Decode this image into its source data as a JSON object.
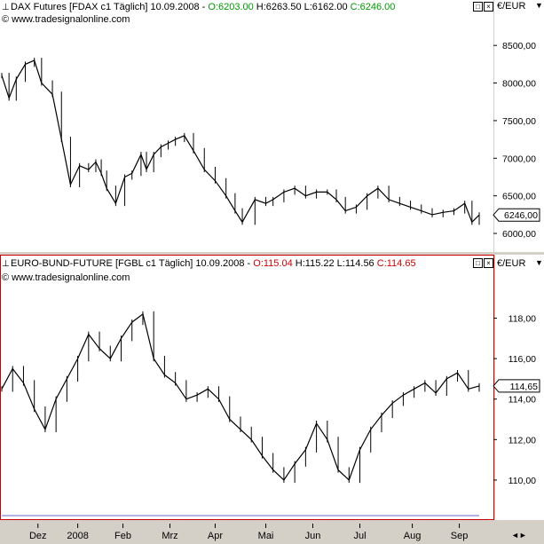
{
  "panels": [
    {
      "title": "DAX Futures [FDAX c1  Täglich] 10.09.2008",
      "sep": " - ",
      "open": "O:6203.00",
      "high": "H:6263.50",
      "low": "L:6162.00",
      "close": "C:6246.00",
      "open_color": "#009900",
      "close_color": "#009900",
      "url": "© www.tradesignalonline.com",
      "unit": "€/EUR",
      "price_label": "6246,00"
    },
    {
      "title": "EURO-BUND-FUTURE [FGBL c1  Täglich] 10.09.2008",
      "sep": " - ",
      "open": "O:115.04",
      "high": "H:115.22",
      "low": "L:114.56",
      "close": "C:114.65",
      "open_color": "#cc0000",
      "close_color": "#cc0000",
      "url": "© www.tradesignalonline.com",
      "unit": "€/EUR",
      "price_label": "114,65"
    }
  ],
  "window_buttons": {
    "restore": "□",
    "close": "×"
  },
  "chart_data": [
    {
      "type": "line",
      "title": "DAX Futures [FDAX c1  Täglich] 10.09.2008",
      "ylim": [
        5800,
        8750
      ],
      "yticks": [
        6000,
        6500,
        7000,
        7500,
        8000,
        8500
      ],
      "ytick_labels": [
        "6000,00",
        "6500,00",
        "7000,00",
        "7500,00",
        "8000,00",
        "8500,00"
      ],
      "last_value": 6246,
      "x": [
        0,
        4,
        8,
        13,
        18,
        22,
        28,
        33,
        38,
        43,
        48,
        52,
        55,
        58,
        63,
        68,
        72,
        77,
        80,
        84,
        88,
        92,
        96,
        101,
        106,
        112,
        118,
        124,
        129,
        133,
        140,
        146,
        150,
        156,
        162,
        168,
        174,
        180,
        185,
        190,
        196,
        202,
        208,
        214,
        220,
        226,
        232,
        238,
        244,
        250,
        256,
        260,
        264
      ],
      "values": [
        8100,
        7800,
        8050,
        8250,
        8300,
        8000,
        7850,
        7250,
        6650,
        6900,
        6850,
        6950,
        6800,
        6600,
        6400,
        6750,
        6800,
        7050,
        6850,
        7050,
        7150,
        7200,
        7250,
        7300,
        7100,
        6850,
        6700,
        6500,
        6300,
        6150,
        6450,
        6400,
        6450,
        6550,
        6600,
        6500,
        6550,
        6550,
        6450,
        6300,
        6350,
        6500,
        6600,
        6450,
        6400,
        6350,
        6300,
        6250,
        6280,
        6300,
        6400,
        6150,
        6246
      ]
    },
    {
      "type": "line",
      "title": "EURO-BUND-FUTURE [FGBL c1  Täglich] 10.09.2008",
      "ylim": [
        108.2,
        119.6
      ],
      "yticks": [
        110,
        112,
        114,
        116,
        118
      ],
      "ytick_labels": [
        "110,00",
        "112,00",
        "114,00",
        "116,00",
        "118,00"
      ],
      "last_value": 114.65,
      "x": [
        0,
        6,
        12,
        18,
        24,
        30,
        36,
        42,
        48,
        54,
        60,
        66,
        72,
        78,
        84,
        90,
        96,
        102,
        108,
        114,
        120,
        126,
        132,
        138,
        144,
        150,
        156,
        162,
        168,
        174,
        180,
        186,
        192,
        198,
        204,
        210,
        216,
        222,
        228,
        234,
        240,
        246,
        252,
        258,
        264
      ],
      "values": [
        114.5,
        115.5,
        114.8,
        113.5,
        112.5,
        114,
        115,
        116,
        117.2,
        116.5,
        116,
        117,
        117.8,
        118.2,
        116,
        115.2,
        114.8,
        114,
        114.2,
        114.5,
        114,
        113,
        112.5,
        112,
        111.2,
        110.5,
        110,
        110.8,
        111.5,
        112.8,
        112,
        110.5,
        110,
        111.5,
        112.5,
        113.2,
        113.8,
        114.2,
        114.5,
        114.8,
        114.3,
        115,
        115.3,
        114.5,
        114.65
      ]
    }
  ],
  "x_axis": {
    "labels": [
      "Dez",
      "2008",
      "Feb",
      "Mrz",
      "Apr",
      "Mai",
      "Jun",
      "Jul",
      "Aug",
      "Sep"
    ],
    "positions": [
      20,
      42,
      67,
      93,
      118,
      146,
      172,
      198,
      227,
      253
    ],
    "domain": [
      0,
      264
    ]
  }
}
